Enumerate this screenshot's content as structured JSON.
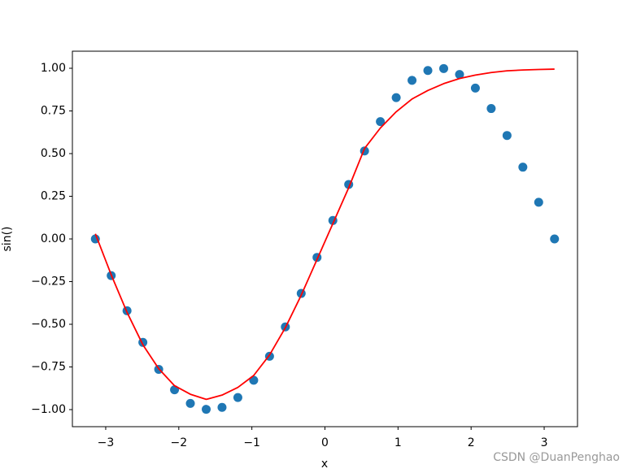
{
  "chart_data": {
    "type": "scatter",
    "x_label": "x",
    "y_label": "sin()",
    "watermark": "CSDN @DuanPenghao",
    "x": [
      -3.1416,
      -2.9249,
      -2.7083,
      -2.4916,
      -2.275,
      -2.0583,
      -1.8417,
      -1.625,
      -1.4083,
      -1.1917,
      -0.975,
      -0.7583,
      -0.5417,
      -0.325,
      -0.1083,
      0.1083,
      0.325,
      0.5417,
      0.7583,
      0.975,
      1.1917,
      1.4083,
      1.625,
      1.8417,
      2.0583,
      2.275,
      2.4916,
      2.7083,
      2.9249,
      3.1416
    ],
    "series": [
      {
        "type": "scatter",
        "color": "#1f77b4",
        "values": [
          0,
          -0.215,
          -0.4206,
          -0.6062,
          -0.764,
          -0.8838,
          -0.9638,
          -0.9985,
          -0.9868,
          -0.929,
          -0.828,
          -0.6876,
          -0.5157,
          -0.3193,
          -0.1081,
          0.1081,
          0.3193,
          0.5157,
          0.6876,
          0.828,
          0.929,
          0.9868,
          0.9985,
          0.9638,
          0.8838,
          0.764,
          0.6062,
          0.4206,
          0.215,
          0
        ]
      },
      {
        "type": "line",
        "color": "#ff0000",
        "values": [
          0.03,
          -0.21,
          -0.43,
          -0.62,
          -0.76,
          -0.86,
          -0.91,
          -0.94,
          -0.915,
          -0.87,
          -0.8,
          -0.68,
          -0.52,
          -0.33,
          -0.12,
          0.09,
          0.3,
          0.53,
          0.65,
          0.745,
          0.82,
          0.87,
          0.91,
          0.94,
          0.96,
          0.975,
          0.985,
          0.99,
          0.993,
          0.995
        ]
      }
    ],
    "xlim": [
      -3.456,
      3.456
    ],
    "ylim": [
      -1.1,
      1.1
    ],
    "xticks": [
      {
        "value": -3,
        "label": "−3"
      },
      {
        "value": -2,
        "label": "−2"
      },
      {
        "value": -1,
        "label": "−1"
      },
      0,
      1,
      2,
      3
    ],
    "yticks": [
      {
        "value": -1,
        "label": "−1.00"
      },
      {
        "value": -0.75,
        "label": "−0.75"
      },
      {
        "value": -0.5,
        "label": "−0.50"
      },
      {
        "value": -0.25,
        "label": "−0.25"
      },
      {
        "value": 0,
        "label": "0.00"
      },
      {
        "value": 0.25,
        "label": "0.25"
      },
      {
        "value": 0.5,
        "label": "0.50"
      },
      {
        "value": 0.75,
        "label": "0.75"
      },
      {
        "value": 1,
        "label": "1.00"
      }
    ]
  }
}
